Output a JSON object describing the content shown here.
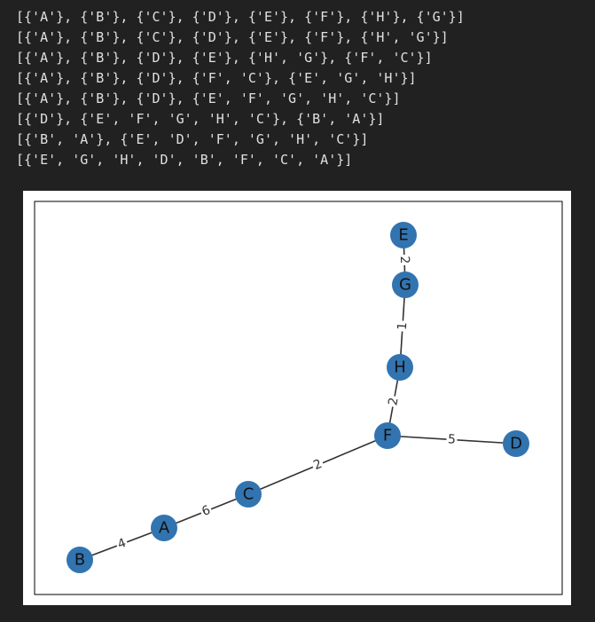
{
  "output_lines": [
    "[{'A'}, {'B'}, {'C'}, {'D'}, {'E'}, {'F'}, {'H'}, {'G'}]",
    "[{'A'}, {'B'}, {'C'}, {'D'}, {'E'}, {'F'}, {'H', 'G'}]",
    "[{'A'}, {'B'}, {'D'}, {'E'}, {'H', 'G'}, {'F', 'C'}]",
    "[{'A'}, {'B'}, {'D'}, {'F', 'C'}, {'E', 'G', 'H'}]",
    "[{'A'}, {'B'}, {'D'}, {'E', 'F', 'G', 'H', 'C'}]",
    "[{'D'}, {'E', 'F', 'G', 'H', 'C'}, {'B', 'A'}]",
    "[{'B', 'A'}, {'E', 'D', 'F', 'G', 'H', 'C'}]",
    "[{'E', 'G', 'H', 'D', 'B', 'F', 'C', 'A'}]"
  ],
  "graph": {
    "nodes": [
      "E",
      "G",
      "H",
      "F",
      "D",
      "C",
      "A",
      "B"
    ],
    "edges": [
      "2",
      "1",
      "2",
      "5",
      "2",
      "6",
      "4"
    ]
  }
}
